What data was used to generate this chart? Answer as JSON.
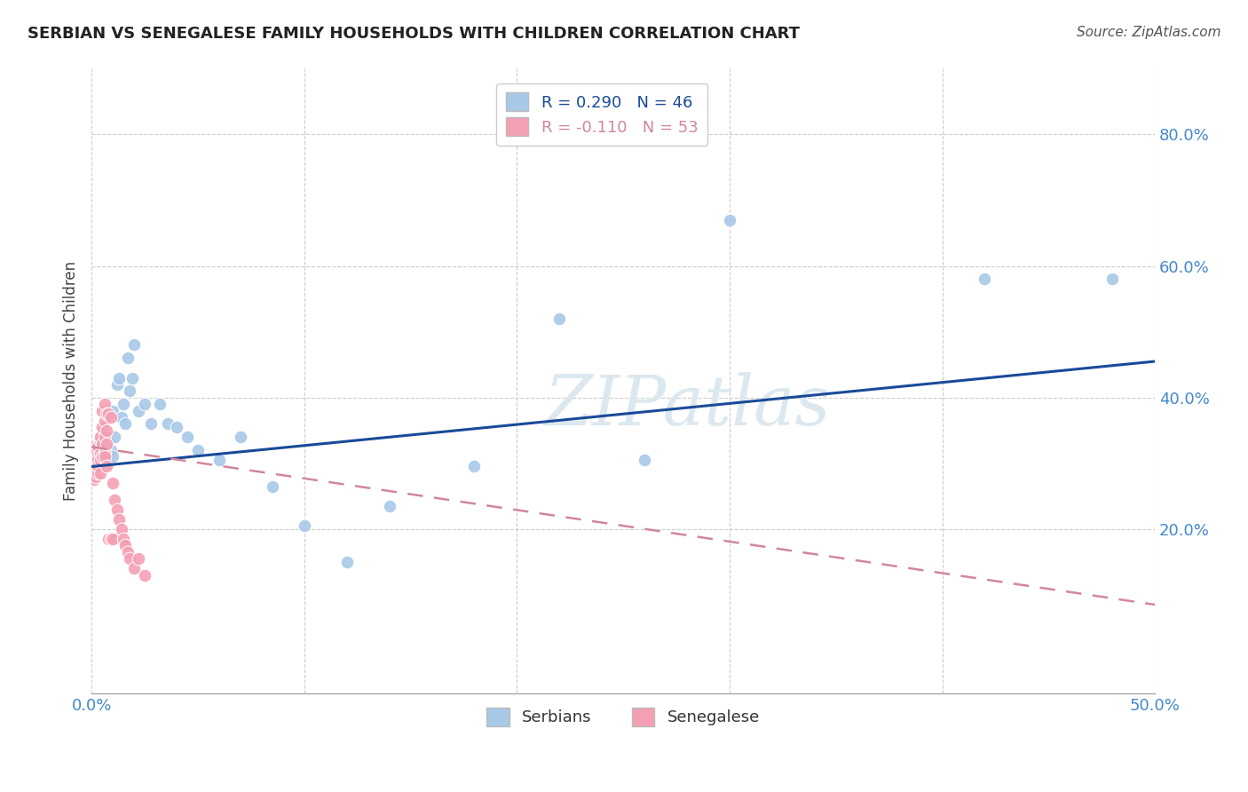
{
  "title": "SERBIAN VS SENEGALESE FAMILY HOUSEHOLDS WITH CHILDREN CORRELATION CHART",
  "source": "Source: ZipAtlas.com",
  "ylabel": "Family Households with Children",
  "xlim": [
    0.0,
    0.5
  ],
  "ylim": [
    -0.05,
    0.9
  ],
  "ytick_positions": [
    0.2,
    0.4,
    0.6,
    0.8
  ],
  "ytick_labels": [
    "20.0%",
    "40.0%",
    "60.0%",
    "80.0%"
  ],
  "serbian_color": "#a8c8e8",
  "senegalese_color": "#f4a0b4",
  "serbian_line_color": "#1a4a99",
  "senegalese_line_color": "#d08898",
  "watermark": "ZIPatlas",
  "watermark_color": "#dce8f0",
  "legend_label1": "Serbians",
  "legend_label2": "Senegalese",
  "serbian_line_start_y": 0.295,
  "serbian_line_end_y": 0.455,
  "senegalese_line_start_y": 0.325,
  "senegalese_line_end_y": 0.085,
  "serbian_x": [
    0.002,
    0.003,
    0.003,
    0.004,
    0.004,
    0.005,
    0.005,
    0.006,
    0.006,
    0.007,
    0.007,
    0.008,
    0.008,
    0.009,
    0.01,
    0.01,
    0.011,
    0.012,
    0.013,
    0.014,
    0.015,
    0.016,
    0.017,
    0.018,
    0.019,
    0.02,
    0.022,
    0.025,
    0.028,
    0.032,
    0.036,
    0.04,
    0.045,
    0.05,
    0.06,
    0.07,
    0.085,
    0.1,
    0.12,
    0.14,
    0.18,
    0.22,
    0.26,
    0.3,
    0.42,
    0.48
  ],
  "serbian_y": [
    0.305,
    0.31,
    0.295,
    0.315,
    0.3,
    0.32,
    0.305,
    0.33,
    0.31,
    0.325,
    0.315,
    0.335,
    0.3,
    0.32,
    0.38,
    0.31,
    0.34,
    0.42,
    0.43,
    0.37,
    0.39,
    0.36,
    0.46,
    0.41,
    0.43,
    0.48,
    0.38,
    0.39,
    0.36,
    0.39,
    0.36,
    0.355,
    0.34,
    0.32,
    0.305,
    0.34,
    0.265,
    0.205,
    0.15,
    0.235,
    0.295,
    0.52,
    0.305,
    0.67,
    0.58,
    0.58
  ],
  "senegalese_x": [
    0.001,
    0.001,
    0.001,
    0.001,
    0.001,
    0.002,
    0.002,
    0.002,
    0.002,
    0.002,
    0.002,
    0.002,
    0.003,
    0.003,
    0.003,
    0.003,
    0.003,
    0.003,
    0.004,
    0.004,
    0.004,
    0.004,
    0.004,
    0.005,
    0.005,
    0.005,
    0.005,
    0.006,
    0.006,
    0.006,
    0.006,
    0.006,
    0.007,
    0.007,
    0.007,
    0.007,
    0.008,
    0.008,
    0.009,
    0.009,
    0.01,
    0.01,
    0.011,
    0.012,
    0.013,
    0.014,
    0.015,
    0.016,
    0.017,
    0.018,
    0.02,
    0.022,
    0.025
  ],
  "senegalese_y": [
    0.325,
    0.31,
    0.29,
    0.305,
    0.275,
    0.315,
    0.3,
    0.29,
    0.31,
    0.28,
    0.3,
    0.32,
    0.31,
    0.295,
    0.285,
    0.305,
    0.325,
    0.295,
    0.335,
    0.315,
    0.285,
    0.305,
    0.34,
    0.38,
    0.355,
    0.33,
    0.31,
    0.39,
    0.365,
    0.34,
    0.315,
    0.31,
    0.375,
    0.35,
    0.33,
    0.295,
    0.375,
    0.185,
    0.37,
    0.185,
    0.27,
    0.185,
    0.245,
    0.23,
    0.215,
    0.2,
    0.185,
    0.175,
    0.165,
    0.155,
    0.14,
    0.155,
    0.13
  ]
}
